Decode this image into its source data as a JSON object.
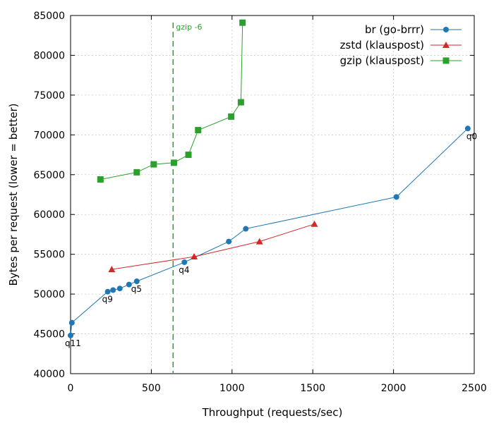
{
  "chart_data": {
    "type": "line",
    "xlabel": "Throughput (requests/sec)",
    "ylabel": "Bytes per request (lower = better)",
    "xlim": [
      0,
      2500
    ],
    "ylim": [
      40000,
      85000
    ],
    "x_ticks": [
      0,
      500,
      1000,
      1500,
      2000,
      2500
    ],
    "y_ticks": [
      40000,
      45000,
      50000,
      55000,
      60000,
      65000,
      70000,
      75000,
      80000,
      85000
    ],
    "grid": true,
    "legend_position": "top-right",
    "reference_line": {
      "x": 635,
      "label": "gzip -6",
      "color": "#2ca02c"
    },
    "series": [
      {
        "name": "br (go-brrr)",
        "color": "#1f77b4",
        "marker": "circle",
        "points": [
          {
            "x": 0,
            "y": 44800,
            "label": "q11"
          },
          {
            "x": 8,
            "y": 46400
          },
          {
            "x": 230,
            "y": 50300,
            "label": "q9"
          },
          {
            "x": 263,
            "y": 50500
          },
          {
            "x": 305,
            "y": 50700
          },
          {
            "x": 362,
            "y": 51200
          },
          {
            "x": 410,
            "y": 51600,
            "label": "q5"
          },
          {
            "x": 705,
            "y": 54000,
            "label": "q4"
          },
          {
            "x": 980,
            "y": 56600
          },
          {
            "x": 1085,
            "y": 58200
          },
          {
            "x": 2018,
            "y": 62200
          },
          {
            "x": 2460,
            "y": 70800,
            "label": "q0"
          }
        ]
      },
      {
        "name": "zstd (klauspost)",
        "color": "#d62728",
        "marker": "triangle",
        "points": [
          {
            "x": 255,
            "y": 53100
          },
          {
            "x": 765,
            "y": 54700
          },
          {
            "x": 1170,
            "y": 56600
          },
          {
            "x": 1510,
            "y": 58800
          }
        ]
      },
      {
        "name": "gzip (klauspost)",
        "color": "#2ca02c",
        "marker": "square",
        "points": [
          {
            "x": 185,
            "y": 64400
          },
          {
            "x": 410,
            "y": 65300
          },
          {
            "x": 515,
            "y": 66300
          },
          {
            "x": 640,
            "y": 66500
          },
          {
            "x": 730,
            "y": 67500
          },
          {
            "x": 790,
            "y": 70600
          },
          {
            "x": 995,
            "y": 72300
          },
          {
            "x": 1055,
            "y": 74100
          },
          {
            "x": 1065,
            "y": 84100
          }
        ]
      }
    ]
  }
}
